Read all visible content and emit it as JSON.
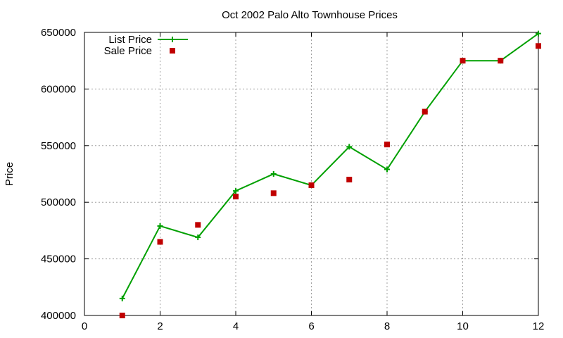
{
  "chart_data": {
    "type": "line",
    "title": "Oct 2002 Palo Alto Townhouse Prices",
    "xlabel": "",
    "ylabel": "Price",
    "xlim": [
      0,
      12
    ],
    "ylim": [
      400000,
      650000
    ],
    "x_ticks": [
      0,
      2,
      4,
      6,
      8,
      10,
      12
    ],
    "y_ticks": [
      400000,
      450000,
      500000,
      550000,
      600000,
      650000
    ],
    "grid": true,
    "legend_position": "top-left",
    "series": [
      {
        "name": "List Price",
        "style": "line-with-plus-markers",
        "color": "#00a000",
        "x": [
          1,
          2,
          3,
          4,
          5,
          6,
          7,
          8,
          9,
          10,
          11,
          12
        ],
        "values": [
          415000,
          479000,
          469000,
          510000,
          525000,
          515000,
          549000,
          529000,
          580000,
          625000,
          625000,
          649000
        ]
      },
      {
        "name": "Sale Price",
        "style": "square-markers",
        "color": "#c00000",
        "x": [
          1,
          2,
          3,
          4,
          5,
          6,
          7,
          8,
          9,
          10,
          11,
          12
        ],
        "values": [
          400000,
          465000,
          480000,
          505000,
          508000,
          515000,
          520000,
          551000,
          580000,
          625000,
          625000,
          638000
        ]
      }
    ]
  }
}
